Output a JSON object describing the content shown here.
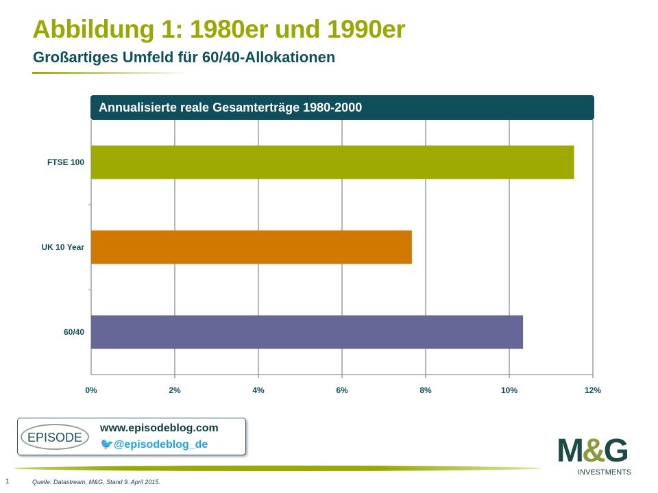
{
  "header": {
    "title": "Abbildung 1: 1980er und 1990er",
    "subtitle": "Großartiges Umfeld für 60/40-Allokationen"
  },
  "chart_data": {
    "type": "bar",
    "orientation": "horizontal",
    "title": "Annualisierte reale Gesamterträge 1980-2000",
    "categories": [
      "FTSE 100",
      "UK 10 Year",
      "60/40"
    ],
    "values": [
      11.55,
      7.67,
      10.33
    ],
    "colors": [
      "#9eaa00",
      "#d07800",
      "#676797"
    ],
    "xlim": [
      0,
      12
    ],
    "xticks": [
      "0%",
      "2%",
      "4%",
      "6%",
      "8%",
      "10%",
      "12%"
    ],
    "xlabel": "",
    "ylabel": "",
    "grid": true
  },
  "footer": {
    "url": "www.episodeblog.com",
    "twitter": "@episodeblog_de",
    "episode_logo": "EPISODE",
    "mg_logo": "M&G",
    "mg_sub": "INVESTMENTS",
    "page": "1",
    "source": "Quelle: Datastream,  M&G, Stand 9. April 2015."
  }
}
